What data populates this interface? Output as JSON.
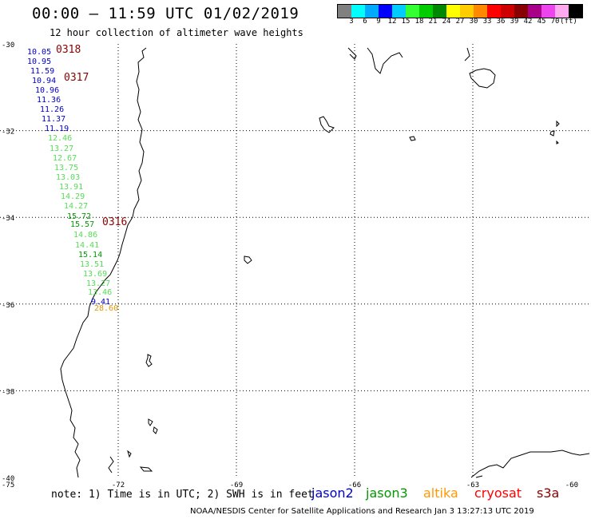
{
  "title": "00:00 – 11:59 UTC 01/02/2019",
  "subtitle": "12 hour collection of altimeter wave heights",
  "colorbar": {
    "unit": "(ft)",
    "colors": [
      "#808080",
      "#00ffff",
      "#00aaff",
      "#0000ff",
      "#00ccff",
      "#33ff33",
      "#00cc00",
      "#008800",
      "#ffff00",
      "#ffcc00",
      "#ff8800",
      "#ff0000",
      "#cc0000",
      "#880000",
      "#aa0088",
      "#ee44ee",
      "#ffaaee",
      "#000000"
    ],
    "ticks": [
      "3",
      "6",
      "9",
      "12",
      "15",
      "18",
      "21",
      "24",
      "27",
      "30",
      "33",
      "36",
      "39",
      "42",
      "45",
      "70"
    ]
  },
  "axes": {
    "lat_labels": [
      "-30",
      "-32",
      "-34",
      "-36",
      "-38",
      "-40"
    ],
    "lon_labels": [
      "-75",
      "-72",
      "-69",
      "-66",
      "-63",
      "-60"
    ],
    "lat_range": [
      -40,
      -30
    ],
    "lon_range": [
      -75,
      -60
    ]
  },
  "track_times": [
    {
      "label": "0318",
      "color": "#8b0000"
    },
    {
      "label": "0317",
      "color": "#8b0000"
    },
    {
      "label": "0316",
      "color": "#8b0000"
    }
  ],
  "chart_data": {
    "type": "scatter",
    "series": [
      {
        "name": "jason2",
        "color": "#0000cc",
        "values": [
          "10.05",
          "10.95",
          "11.59",
          "10.94",
          "10.96",
          "11.36",
          "11.26",
          "11.37",
          "11.19"
        ]
      },
      {
        "name": "jason3",
        "color": "#009900",
        "values": [
          "12.46",
          "13.27",
          "12.67",
          "13.75",
          "13.03",
          "13.91",
          "14.29",
          "14.27",
          "15.72",
          "15.57",
          "14.86",
          "14.41",
          "15.14",
          "13.51",
          "13.69",
          "13.27",
          "13.46",
          "9.41"
        ]
      },
      {
        "name": "altika",
        "color": "#e69500",
        "values": [
          "28.60"
        ]
      }
    ]
  },
  "footer": {
    "note": "note: 1) Time is in UTC; 2) SWH is in feet",
    "legend": [
      {
        "label": "jason2",
        "color": "#0000cc"
      },
      {
        "label": "jason3",
        "color": "#009900"
      },
      {
        "label": "altika",
        "color": "#ff9900"
      },
      {
        "label": "cryosat",
        "color": "#ff0000"
      },
      {
        "label": "s3a",
        "color": "#8b0000"
      }
    ],
    "credit": "NOAA/NESDIS Center for Satellite Applications and Research    Jan  3 13:27:13 UTC 2019"
  }
}
